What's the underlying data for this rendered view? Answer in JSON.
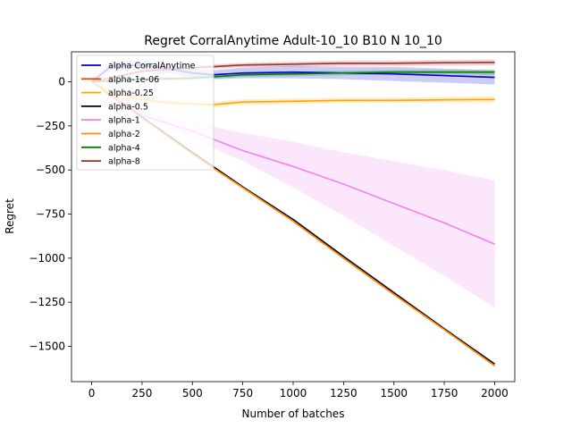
{
  "chart_data": {
    "type": "line",
    "title": "Regret CorralAnytime Adult-10_10 B10 N 10_10",
    "xlabel": "Number of batches",
    "ylabel": "Regret",
    "xlim": [
      -100,
      2100
    ],
    "ylim": [
      -1700,
      170
    ],
    "xticks": [
      0,
      250,
      500,
      750,
      1000,
      1250,
      1500,
      1750,
      2000
    ],
    "yticks": [
      0,
      -250,
      -500,
      -750,
      -1000,
      -1250,
      -1500
    ],
    "grid": false,
    "legend_position": "upper-left",
    "series": [
      {
        "name": "alpha CorralAnytime",
        "color": "#0000cc",
        "x": [
          0,
          100,
          250,
          400,
          500,
          600,
          750,
          1000,
          1250,
          1500,
          1750,
          2000
        ],
        "y": [
          0,
          90,
          95,
          70,
          50,
          40,
          50,
          55,
          50,
          45,
          35,
          25
        ],
        "band_lower": [
          0,
          60,
          70,
          45,
          25,
          15,
          20,
          20,
          15,
          5,
          -5,
          -15
        ],
        "band_upper": [
          0,
          120,
          120,
          95,
          75,
          65,
          80,
          90,
          85,
          85,
          75,
          65
        ]
      },
      {
        "name": "alpha-1e-06",
        "color": "#ff4500",
        "x": [
          0,
          250,
          500,
          750,
          1000,
          1250,
          1500,
          1750,
          2000
        ],
        "y": [
          0,
          -205,
          -410,
          -600,
          -790,
          -1000,
          -1205,
          -1405,
          -1610
        ]
      },
      {
        "name": "alpha-0.25",
        "color": "#ffa500",
        "x": [
          0,
          100,
          250,
          400,
          500,
          600,
          750,
          1000,
          1250,
          1500,
          1750,
          2000
        ],
        "y": [
          0,
          -60,
          -100,
          -120,
          -125,
          -130,
          -115,
          -110,
          -105,
          -105,
          -102,
          -100
        ],
        "band_lower": [
          0,
          -70,
          -115,
          -135,
          -140,
          -145,
          -130,
          -125,
          -120,
          -118,
          -118,
          -118
        ],
        "band_upper": [
          0,
          -50,
          -85,
          -105,
          -110,
          -115,
          -100,
          -95,
          -90,
          -90,
          -86,
          -82
        ]
      },
      {
        "name": "alpha-0.5",
        "color": "#000000",
        "x": [
          0,
          250,
          500,
          750,
          1000,
          1250,
          1500,
          1750,
          2000
        ],
        "y": [
          0,
          -200,
          -400,
          -595,
          -780,
          -990,
          -1195,
          -1400,
          -1600
        ]
      },
      {
        "name": "alpha-1",
        "color": "#ee82ee",
        "x": [
          0,
          250,
          500,
          750,
          1000,
          1250,
          1500,
          1750,
          2000
        ],
        "y": [
          0,
          -190,
          -280,
          -390,
          -480,
          -580,
          -690,
          -800,
          -920
        ],
        "band_lower": [
          0,
          -200,
          -320,
          -450,
          -600,
          -760,
          -930,
          -1100,
          -1280
        ],
        "band_upper": [
          0,
          -170,
          -230,
          -290,
          -340,
          -400,
          -450,
          -500,
          -560
        ]
      },
      {
        "name": "alpha-2",
        "color": "#ff8c00",
        "x": [
          0,
          250,
          500,
          750,
          1000,
          1250,
          1500,
          1750,
          2000
        ],
        "y": [
          0,
          -205,
          -410,
          -600,
          -790,
          -1000,
          -1205,
          -1405,
          -1610
        ]
      },
      {
        "name": "alpha-4",
        "color": "#008000",
        "x": [
          0,
          250,
          500,
          750,
          1000,
          1250,
          1500,
          1750,
          2000
        ],
        "y": [
          0,
          15,
          20,
          40,
          45,
          50,
          55,
          55,
          55
        ],
        "band_lower": [
          0,
          5,
          10,
          28,
          32,
          37,
          42,
          42,
          40
        ],
        "band_upper": [
          0,
          25,
          30,
          52,
          58,
          63,
          68,
          68,
          70
        ]
      },
      {
        "name": "alpha-8",
        "color": "#a52a2a",
        "x": [
          0,
          250,
          500,
          750,
          1000,
          1250,
          1500,
          1750,
          2000
        ],
        "y": [
          0,
          60,
          80,
          95,
          100,
          105,
          105,
          108,
          110
        ],
        "band_lower": [
          0,
          48,
          68,
          82,
          86,
          90,
          90,
          92,
          93
        ],
        "band_upper": [
          0,
          72,
          92,
          108,
          114,
          120,
          120,
          124,
          127
        ]
      }
    ]
  }
}
